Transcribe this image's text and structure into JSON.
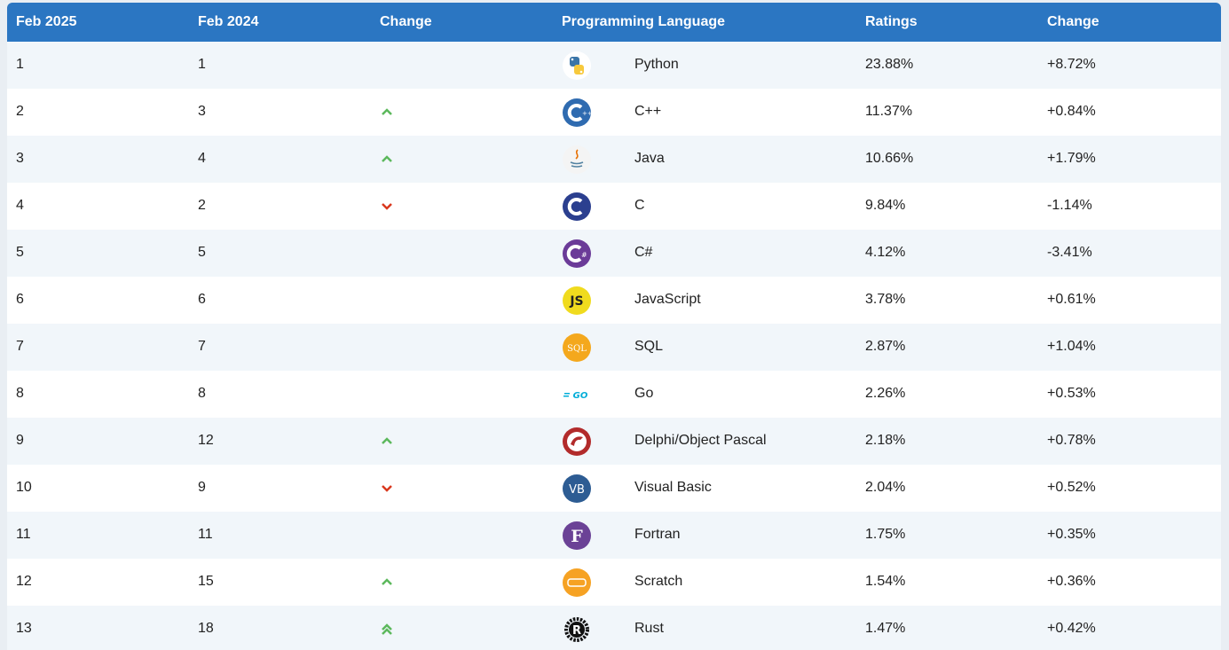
{
  "headers": {
    "feb2025": "Feb 2025",
    "feb2024": "Feb 2024",
    "change": "Change",
    "language": "Programming Language",
    "ratings": "Ratings",
    "change_pct": "Change"
  },
  "colors": {
    "header_bg": "#2b76c2",
    "arrow_up": "#5cb85c",
    "arrow_down": "#d9381e"
  },
  "rows": [
    {
      "rank2025": "1",
      "rank2024": "1",
      "trend": "none",
      "icon": "python-logo-icon",
      "language": "Python",
      "rating": "23.88%",
      "change": "+8.72%"
    },
    {
      "rank2025": "2",
      "rank2024": "3",
      "trend": "up",
      "icon": "cpp-logo-icon",
      "language": "C++",
      "rating": "11.37%",
      "change": "+0.84%"
    },
    {
      "rank2025": "3",
      "rank2024": "4",
      "trend": "up",
      "icon": "java-logo-icon",
      "language": "Java",
      "rating": "10.66%",
      "change": "+1.79%"
    },
    {
      "rank2025": "4",
      "rank2024": "2",
      "trend": "down",
      "icon": "c-logo-icon",
      "language": "C",
      "rating": "9.84%",
      "change": "-1.14%"
    },
    {
      "rank2025": "5",
      "rank2024": "5",
      "trend": "none",
      "icon": "csharp-logo-icon",
      "language": "C#",
      "rating": "4.12%",
      "change": "-3.41%"
    },
    {
      "rank2025": "6",
      "rank2024": "6",
      "trend": "none",
      "icon": "javascript-logo-icon",
      "language": "JavaScript",
      "rating": "3.78%",
      "change": "+0.61%"
    },
    {
      "rank2025": "7",
      "rank2024": "7",
      "trend": "none",
      "icon": "sql-logo-icon",
      "language": "SQL",
      "rating": "2.87%",
      "change": "+1.04%"
    },
    {
      "rank2025": "8",
      "rank2024": "8",
      "trend": "none",
      "icon": "go-logo-icon",
      "language": "Go",
      "rating": "2.26%",
      "change": "+0.53%"
    },
    {
      "rank2025": "9",
      "rank2024": "12",
      "trend": "up",
      "icon": "delphi-logo-icon",
      "language": "Delphi/Object Pascal",
      "rating": "2.18%",
      "change": "+0.78%"
    },
    {
      "rank2025": "10",
      "rank2024": "9",
      "trend": "down",
      "icon": "visual-basic-logo-icon",
      "language": "Visual Basic",
      "rating": "2.04%",
      "change": "+0.52%"
    },
    {
      "rank2025": "11",
      "rank2024": "11",
      "trend": "none",
      "icon": "fortran-logo-icon",
      "language": "Fortran",
      "rating": "1.75%",
      "change": "+0.35%"
    },
    {
      "rank2025": "12",
      "rank2024": "15",
      "trend": "up",
      "icon": "scratch-logo-icon",
      "language": "Scratch",
      "rating": "1.54%",
      "change": "+0.36%"
    },
    {
      "rank2025": "13",
      "rank2024": "18",
      "trend": "double-up",
      "icon": "rust-logo-icon",
      "language": "Rust",
      "rating": "1.47%",
      "change": "+0.42%"
    }
  ]
}
